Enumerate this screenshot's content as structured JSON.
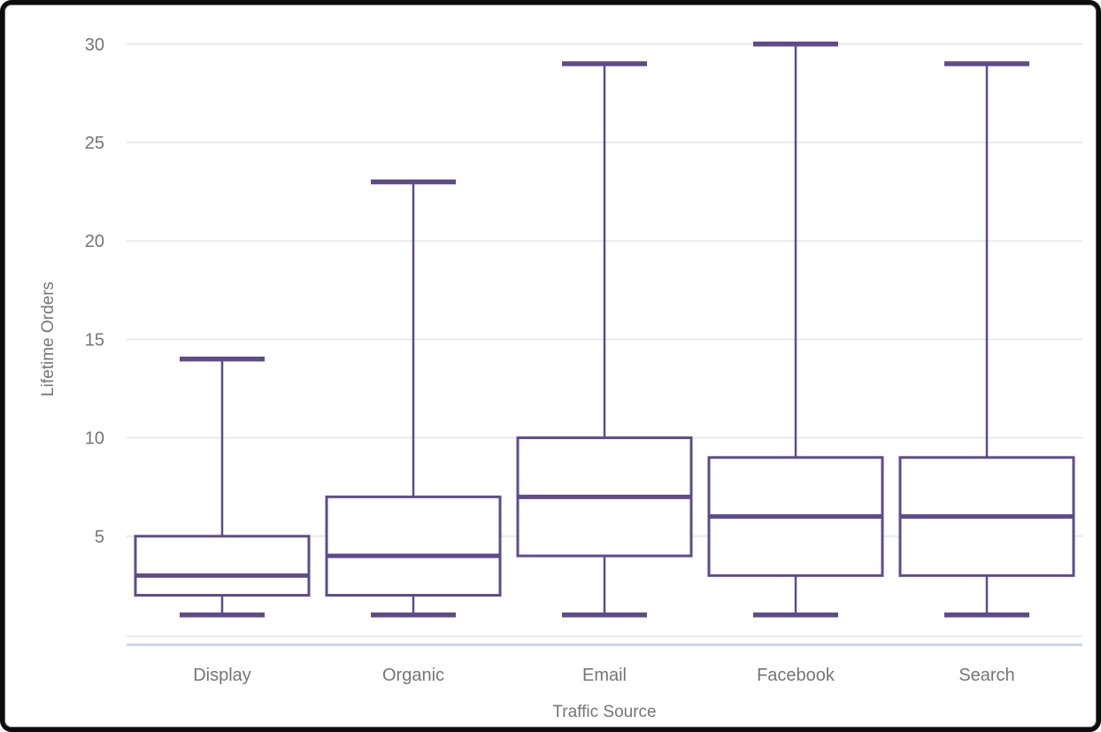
{
  "chart_data": {
    "type": "boxplot",
    "title": "",
    "xlabel": "Traffic Source",
    "ylabel": "Lifetime Orders",
    "categories": [
      "Display",
      "Organic",
      "Email",
      "Facebook",
      "Search"
    ],
    "series": [
      {
        "name": "Display",
        "min": 1,
        "q1": 2,
        "median": 3,
        "q3": 5,
        "max": 14
      },
      {
        "name": "Organic",
        "min": 1,
        "q1": 2,
        "median": 4,
        "q3": 7,
        "max": 23
      },
      {
        "name": "Email",
        "min": 1,
        "q1": 4,
        "median": 7,
        "q3": 10,
        "max": 29
      },
      {
        "name": "Facebook",
        "min": 1,
        "q1": 3,
        "median": 6,
        "q3": 9,
        "max": 30
      },
      {
        "name": "Search",
        "min": 1,
        "q1": 3,
        "median": 6,
        "q3": 9,
        "max": 29
      }
    ],
    "yticks": [
      5,
      10,
      15,
      20,
      25,
      30
    ],
    "ylim": [
      0,
      30
    ],
    "grid": true,
    "legend": "none",
    "colors": {
      "box_stroke": "#5e4b8a",
      "box_fill": "#ffffff",
      "gridline": "#eaeaea",
      "axis_line": "#ccd6ea",
      "label": "#757575"
    }
  }
}
